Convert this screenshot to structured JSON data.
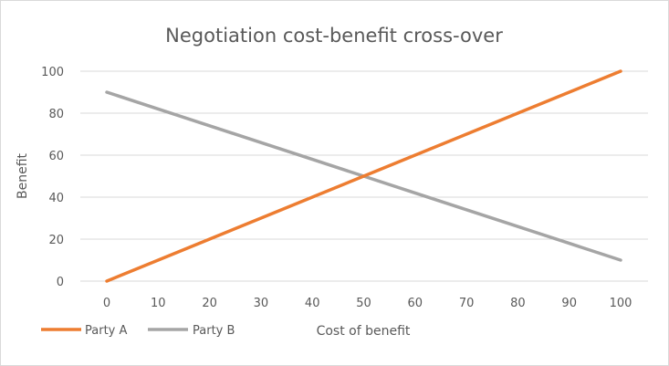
{
  "chart_data": {
    "type": "line",
    "title": "Negotiation cost-benefit cross-over",
    "xlabel": "Cost of benefit",
    "ylabel": "Benefit",
    "x": [
      0,
      10,
      20,
      30,
      40,
      50,
      60,
      70,
      80,
      90,
      100
    ],
    "xlim": [
      0,
      100
    ],
    "ylim": [
      0,
      100
    ],
    "x_ticks": [
      "0",
      "10",
      "20",
      "30",
      "40",
      "50",
      "60",
      "70",
      "80",
      "90",
      "100"
    ],
    "y_ticks": [
      "0",
      "20",
      "40",
      "60",
      "80",
      "100"
    ],
    "grid": "horizontal",
    "legend_position": "bottom-left",
    "series": [
      {
        "name": "Party A",
        "color": "#ed7d31",
        "values": [
          0,
          10,
          20,
          30,
          40,
          50,
          60,
          70,
          80,
          90,
          100
        ]
      },
      {
        "name": "Party B",
        "color": "#a5a5a5",
        "values": [
          90,
          82,
          74,
          66,
          58,
          50,
          42,
          34,
          26,
          18,
          10
        ]
      }
    ]
  }
}
